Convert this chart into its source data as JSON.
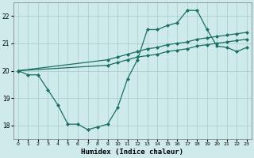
{
  "xlabel": "Humidex (Indice chaleur)",
  "background_color": "#ceeaea",
  "grid_color": "#aacaca",
  "line_color": "#1a7060",
  "line_width": 0.9,
  "marker": "D",
  "marker_size": 2.0,
  "xlim": [
    -0.5,
    23.5
  ],
  "ylim": [
    17.5,
    22.5
  ],
  "yticks": [
    18,
    19,
    20,
    21,
    22
  ],
  "xticks": [
    0,
    1,
    2,
    3,
    4,
    5,
    6,
    7,
    8,
    9,
    10,
    11,
    12,
    13,
    14,
    15,
    16,
    17,
    18,
    19,
    20,
    21,
    22,
    23
  ],
  "series": [
    {
      "x": [
        0,
        1,
        2,
        3,
        4,
        5,
        6,
        7,
        8,
        9,
        10,
        11,
        12,
        13,
        14,
        15,
        16,
        17,
        18,
        19,
        20,
        21,
        22,
        23
      ],
      "y": [
        20.0,
        19.85,
        19.85,
        19.3,
        18.75,
        18.05,
        18.05,
        17.85,
        17.95,
        18.05,
        18.65,
        19.7,
        20.4,
        21.5,
        21.5,
        21.65,
        21.75,
        22.2,
        22.2,
        21.5,
        20.9,
        20.85,
        20.7,
        20.85
      ]
    },
    {
      "x": [
        0,
        9,
        10,
        11,
        12,
        13,
        14,
        15,
        16,
        17,
        18,
        19,
        20,
        21,
        22,
        23
      ],
      "y": [
        20.0,
        20.4,
        20.5,
        20.6,
        20.7,
        20.8,
        20.85,
        20.95,
        21.0,
        21.05,
        21.15,
        21.2,
        21.25,
        21.3,
        21.35,
        21.4
      ]
    },
    {
      "x": [
        0,
        9,
        10,
        11,
        12,
        13,
        14,
        15,
        16,
        17,
        18,
        19,
        20,
        21,
        22,
        23
      ],
      "y": [
        20.0,
        20.2,
        20.3,
        20.4,
        20.5,
        20.55,
        20.6,
        20.7,
        20.75,
        20.8,
        20.9,
        20.95,
        21.0,
        21.05,
        21.1,
        21.15
      ]
    }
  ]
}
